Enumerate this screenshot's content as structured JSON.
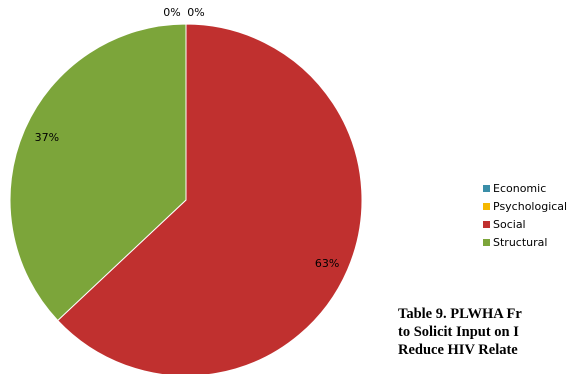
{
  "chart_data": {
    "type": "pie",
    "categories": [
      "Economic",
      "Psychological",
      "Social",
      "Structural"
    ],
    "values": [
      0,
      0,
      63,
      37
    ],
    "data_labels": [
      "0%",
      "0%",
      "63%",
      "37%"
    ],
    "colors": [
      "#3a8ea8",
      "#f5b800",
      "#c0302f",
      "#7ca53a"
    ],
    "legend_position": "right"
  },
  "caption": {
    "lines": [
      "Table 9. PLWHA Fr",
      "to Solicit Input on I",
      "Reduce HIV Relate"
    ]
  }
}
